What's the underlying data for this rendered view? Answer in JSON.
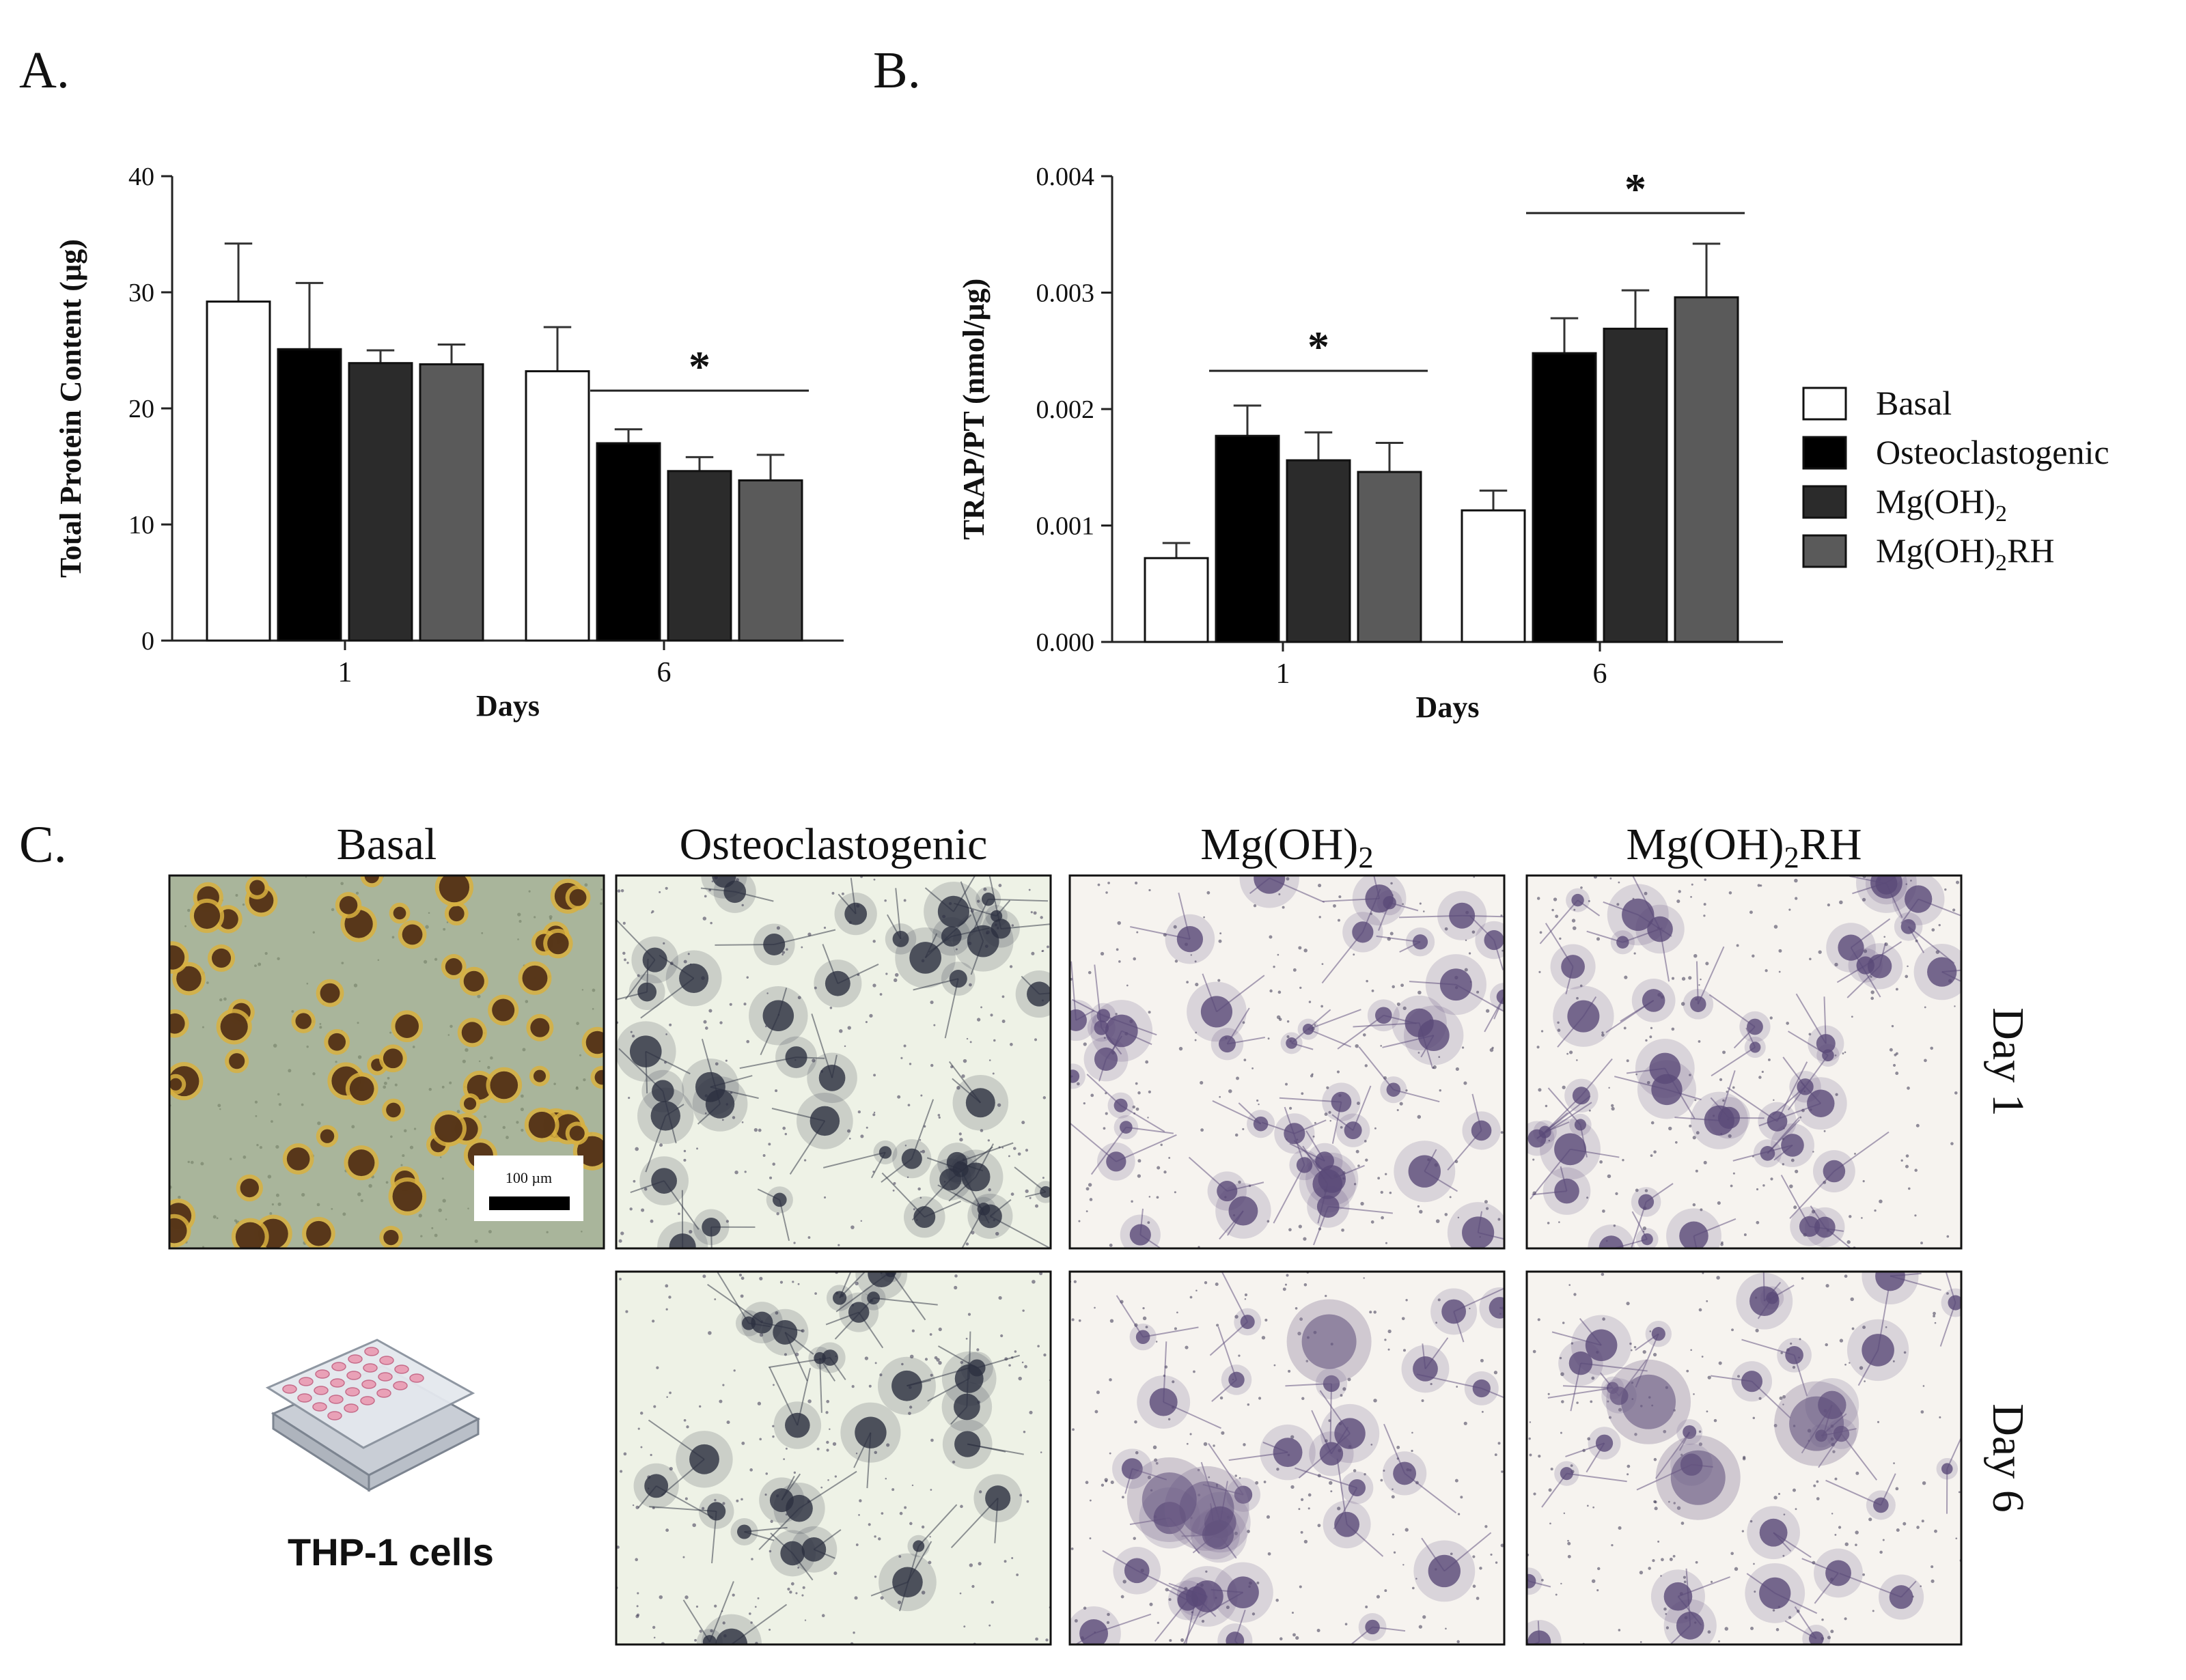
{
  "panels": {
    "A": "A.",
    "B": "B.",
    "C": "C."
  },
  "chart_data": [
    {
      "panel": "A.",
      "type": "bar",
      "categories": [
        "1",
        "6"
      ],
      "xlabel": "Days",
      "ylabel": "Total Protein Content (µg)",
      "ylim": [
        0,
        40
      ],
      "yticks": [
        "0",
        "10",
        "20",
        "30",
        "40"
      ],
      "series": [
        {
          "name": "Basal",
          "values": [
            29.2,
            23.2
          ],
          "errors": [
            5.0,
            3.8
          ]
        },
        {
          "name": "Osteoclastogenic",
          "values": [
            25.1,
            17.0
          ],
          "errors": [
            5.7,
            1.2
          ]
        },
        {
          "name": "Mg(OH)2",
          "values": [
            23.9,
            14.6
          ],
          "errors": [
            1.1,
            1.2
          ]
        },
        {
          "name": "Mg(OH)2RH",
          "values": [
            23.8,
            13.8
          ],
          "errors": [
            1.7,
            2.2
          ]
        }
      ],
      "significance": [
        {
          "day": "6",
          "series_from": 1,
          "series_to": 3,
          "label": "*"
        }
      ],
      "grid": false
    },
    {
      "panel": "B.",
      "type": "bar",
      "categories": [
        "1",
        "6"
      ],
      "xlabel": "Days",
      "ylabel": "TRAP/PT (nmol/µg)",
      "ylim": [
        0,
        0.004
      ],
      "yticks": [
        "0.000",
        "0.001",
        "0.002",
        "0.003",
        "0.004"
      ],
      "series": [
        {
          "name": "Basal",
          "values": [
            0.00072,
            0.00113
          ],
          "errors": [
            0.00013,
            0.00017
          ]
        },
        {
          "name": "Osteoclastogenic",
          "values": [
            0.00177,
            0.00248
          ],
          "errors": [
            0.00026,
            0.0003
          ]
        },
        {
          "name": "Mg(OH)2",
          "values": [
            0.00156,
            0.00269
          ],
          "errors": [
            0.00024,
            0.00033
          ]
        },
        {
          "name": "Mg(OH)2RH",
          "values": [
            0.00146,
            0.00296
          ],
          "errors": [
            0.00025,
            0.00046
          ]
        }
      ],
      "significance": [
        {
          "day": "1",
          "series_from": 1,
          "series_to": 3,
          "label": "*"
        },
        {
          "day": "6",
          "series_from": 1,
          "series_to": 3,
          "label": "*"
        }
      ],
      "grid": false
    }
  ],
  "legend": {
    "placement": "right",
    "items": [
      {
        "label": "Basal",
        "sub": "",
        "suffix": "",
        "fill": "#ffffff"
      },
      {
        "label": "Osteoclastogenic",
        "sub": "",
        "suffix": "",
        "fill": "#000000"
      },
      {
        "label": "Mg(OH)",
        "sub": "2",
        "suffix": "",
        "fill": "#2b2b2b"
      },
      {
        "label": "Mg(OH)",
        "sub": "2",
        "suffix": "RH",
        "fill": "#5a5a5a"
      }
    ]
  },
  "series_colors": [
    "#ffffff",
    "#000000",
    "#2b2b2b",
    "#5a5a5a"
  ],
  "micrographs": {
    "columns": [
      {
        "label": "Basal",
        "sub": "",
        "suffix": ""
      },
      {
        "label": "Osteoclastogenic",
        "sub": "",
        "suffix": ""
      },
      {
        "label": "Mg(OH)",
        "sub": "2",
        "suffix": ""
      },
      {
        "label": "Mg(OH)",
        "sub": "2",
        "suffix": "RH"
      }
    ],
    "rows": [
      "Day 1",
      "Day 6"
    ],
    "scale_bar": "100 µm",
    "cells_label": "THP-1 cells",
    "tints": {
      "basal_bg": "#a9b59b",
      "osteo_bg": "#eef2e6",
      "mg_bg": "#f6f3ef",
      "cell_yellow": "#d8b040",
      "cell_brown": "#4a2a15",
      "cell_purple": "#5a4a78",
      "cell_gray": "#2c3040"
    }
  }
}
